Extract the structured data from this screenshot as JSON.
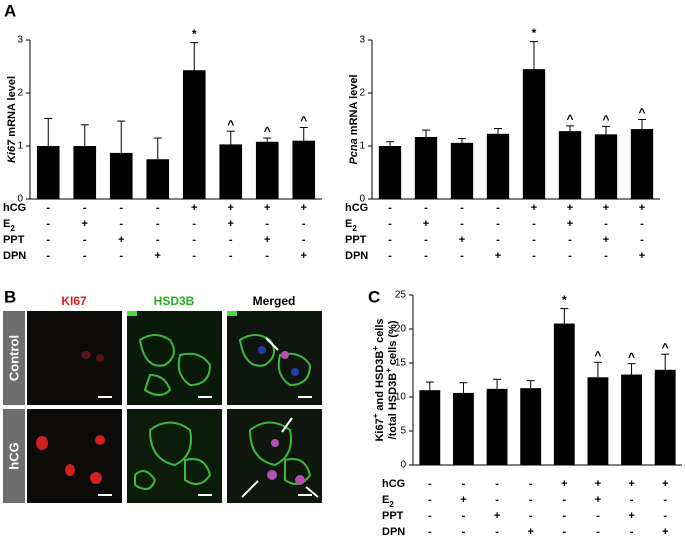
{
  "panel_labels": [
    "A",
    "B",
    "C"
  ],
  "treatments": [
    {
      "name": "hCG",
      "marks": [
        "-",
        "-",
        "-",
        "-",
        "+",
        "+",
        "+",
        "+"
      ]
    },
    {
      "name": "E",
      "sub": "2",
      "marks": [
        "-",
        "+",
        "-",
        "-",
        "-",
        "+",
        "-",
        "-"
      ]
    },
    {
      "name": "PPT",
      "marks": [
        "-",
        "-",
        "+",
        "-",
        "-",
        "-",
        "+",
        "-"
      ]
    },
    {
      "name": "DPN",
      "marks": [
        "-",
        "-",
        "-",
        "+",
        "-",
        "-",
        "-",
        "+"
      ]
    }
  ],
  "micrograph": {
    "columns": [
      "KI67",
      "HSD3B",
      "Merged"
    ],
    "rows": [
      "Control",
      "hCG"
    ]
  },
  "chart_data": [
    {
      "type": "bar",
      "ylabel_italic": "Ki67",
      "ylabel": " mRNA level",
      "color": "#000000",
      "values": [
        1.0,
        1.0,
        0.87,
        0.75,
        2.43,
        1.03,
        1.08,
        1.1
      ],
      "errors": [
        0.52,
        0.4,
        0.6,
        0.4,
        0.52,
        0.25,
        0.07,
        0.25
      ],
      "annotations": [
        {
          "index": 4,
          "text": "*"
        },
        {
          "index": 5,
          "text": "^"
        },
        {
          "index": 6,
          "text": "^"
        },
        {
          "index": 7,
          "text": "^"
        }
      ],
      "ylim": [
        0,
        3
      ],
      "yticks": [
        0,
        1,
        2,
        3
      ]
    },
    {
      "type": "bar",
      "ylabel_italic": "Pcna",
      "ylabel": " mRNA level",
      "color": "#000000",
      "values": [
        1.0,
        1.17,
        1.06,
        1.23,
        2.45,
        1.28,
        1.22,
        1.32
      ],
      "errors": [
        0.08,
        0.13,
        0.08,
        0.1,
        0.52,
        0.1,
        0.15,
        0.18
      ],
      "annotations": [
        {
          "index": 4,
          "text": "*"
        },
        {
          "index": 5,
          "text": "^"
        },
        {
          "index": 6,
          "text": "^"
        },
        {
          "index": 7,
          "text": "^"
        }
      ],
      "ylim": [
        0,
        3
      ],
      "yticks": [
        0,
        1,
        2,
        3
      ]
    },
    {
      "type": "bar",
      "ylabel_lines": [
        [
          "Ki67",
          "+",
          " and HSD3B",
          "+",
          " cells"
        ],
        [
          "/total HSD3B",
          "+",
          " cells (%)"
        ]
      ],
      "color": "#000000",
      "values": [
        11.0,
        10.6,
        11.2,
        11.3,
        20.8,
        12.9,
        13.3,
        14.0
      ],
      "errors": [
        1.2,
        1.5,
        1.4,
        1.1,
        2.2,
        2.2,
        1.6,
        2.3
      ],
      "annotations": [
        {
          "index": 4,
          "text": "*"
        },
        {
          "index": 5,
          "text": "^"
        },
        {
          "index": 6,
          "text": "^"
        },
        {
          "index": 7,
          "text": "^"
        }
      ],
      "ylim": [
        0,
        25
      ],
      "yticks": [
        0,
        5,
        10,
        15,
        20,
        25
      ]
    }
  ]
}
